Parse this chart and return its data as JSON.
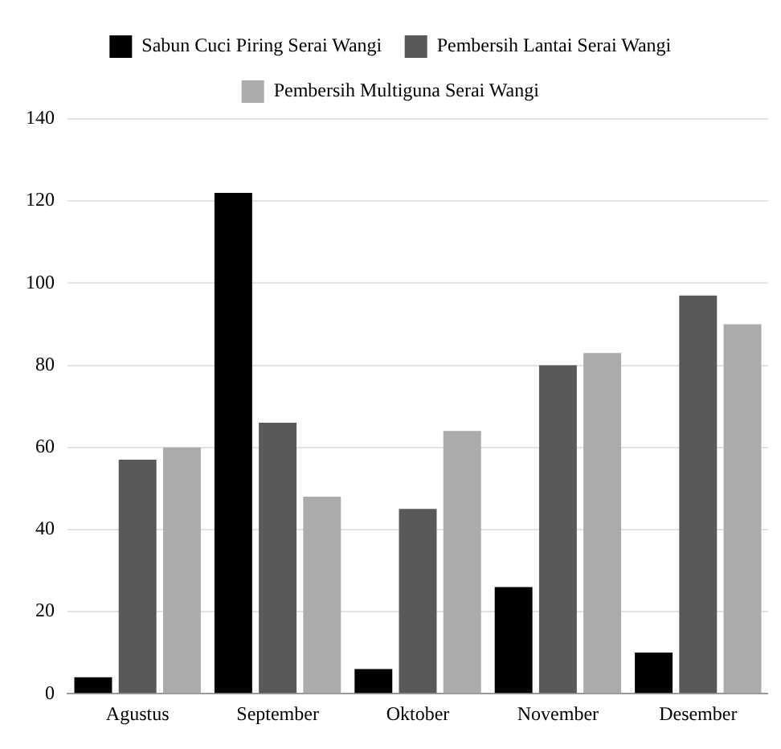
{
  "chart_data": {
    "type": "bar",
    "categories": [
      "Agustus",
      "September",
      "Oktober",
      "November",
      "Desember"
    ],
    "series": [
      {
        "name": "Sabun Cuci Piring Serai Wangi",
        "color": "#000000",
        "values": [
          4,
          122,
          6,
          26,
          10
        ]
      },
      {
        "name": "Pembersih Lantai Serai Wangi",
        "color": "#595959",
        "values": [
          57,
          66,
          45,
          80,
          97
        ]
      },
      {
        "name": "Pembersih Multiguna Serai Wangi",
        "color": "#ababab",
        "values": [
          60,
          48,
          64,
          83,
          90
        ]
      }
    ],
    "ylim": [
      0,
      140
    ],
    "yticks": [
      0,
      20,
      40,
      60,
      80,
      100,
      120,
      140
    ],
    "grid": "y",
    "legend": "top"
  }
}
